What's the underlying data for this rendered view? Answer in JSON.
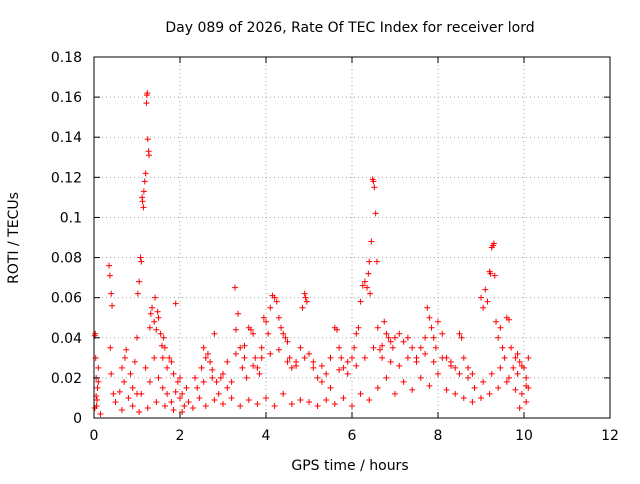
{
  "chart_data": {
    "type": "scatter",
    "title": "Day 089 of 2026, Rate Of TEC Index for receiver lord",
    "xlabel": "GPS time / hours",
    "ylabel": "ROTI / TECUs",
    "xlim": [
      0,
      12
    ],
    "ylim": [
      0,
      0.18
    ],
    "x_ticks": [
      0,
      2,
      4,
      6,
      8,
      10,
      12
    ],
    "y_ticks": [
      0,
      0.02,
      0.04,
      0.06,
      0.08,
      0.1,
      0.12,
      0.14,
      0.16,
      0.18
    ],
    "x_tick_labels": [
      "0",
      "2",
      "4",
      "6",
      "8",
      "10",
      "12"
    ],
    "y_tick_labels": [
      "0",
      "0.02",
      "0.04",
      "0.06",
      "0.08",
      "0.1",
      "0.12",
      "0.14",
      "0.16",
      "0.18"
    ],
    "grid": true,
    "marker": "+",
    "marker_color": "#ff0000",
    "series": [
      {
        "points": [
          [
            0.02,
            0.041
          ],
          [
            0.03,
            0.042
          ],
          [
            0.04,
            0.03
          ],
          [
            0.05,
            0.02
          ],
          [
            0.05,
            0.011
          ],
          [
            0.06,
            0.006
          ],
          [
            0.08,
            0.015
          ],
          [
            0.1,
            0.025
          ],
          [
            0.02,
            0.005
          ],
          [
            0.07,
            0.009
          ],
          [
            0.35,
            0.076
          ],
          [
            0.37,
            0.071
          ],
          [
            0.4,
            0.062
          ],
          [
            0.42,
            0.056
          ],
          [
            0.38,
            0.035
          ],
          [
            0.4,
            0.022
          ],
          [
            0.45,
            0.012
          ],
          [
            0.5,
            0.008
          ],
          [
            0.6,
            0.013
          ],
          [
            0.65,
            0.025
          ],
          [
            0.7,
            0.018
          ],
          [
            0.72,
            0.03
          ],
          [
            0.75,
            0.034
          ],
          [
            0.8,
            0.01
          ],
          [
            0.85,
            0.022
          ],
          [
            0.9,
            0.015
          ],
          [
            0.95,
            0.028
          ],
          [
            1.0,
            0.012
          ],
          [
            1.0,
            0.04
          ],
          [
            1.02,
            0.062
          ],
          [
            1.05,
            0.068
          ],
          [
            1.08,
            0.08
          ],
          [
            1.1,
            0.078
          ],
          [
            1.12,
            0.11
          ],
          [
            1.13,
            0.108
          ],
          [
            1.15,
            0.105
          ],
          [
            1.16,
            0.113
          ],
          [
            1.18,
            0.118
          ],
          [
            1.2,
            0.122
          ],
          [
            1.22,
            0.157
          ],
          [
            1.23,
            0.161
          ],
          [
            1.24,
            0.162
          ],
          [
            1.25,
            0.139
          ],
          [
            1.27,
            0.133
          ],
          [
            1.28,
            0.131
          ],
          [
            1.3,
            0.045
          ],
          [
            1.32,
            0.052
          ],
          [
            1.35,
            0.055
          ],
          [
            1.4,
            0.048
          ],
          [
            1.42,
            0.06
          ],
          [
            1.45,
            0.044
          ],
          [
            1.48,
            0.053
          ],
          [
            1.5,
            0.05
          ],
          [
            1.55,
            0.042
          ],
          [
            1.58,
            0.036
          ],
          [
            1.6,
            0.03
          ],
          [
            1.62,
            0.04
          ],
          [
            1.65,
            0.035
          ],
          [
            1.7,
            0.025
          ],
          [
            1.75,
            0.03
          ],
          [
            1.8,
            0.028
          ],
          [
            1.85,
            0.022
          ],
          [
            1.9,
            0.057
          ],
          [
            1.95,
            0.018
          ],
          [
            2.0,
            0.01
          ],
          [
            2.05,
            0.012
          ],
          [
            2.1,
            0.006
          ],
          [
            2.15,
            0.015
          ],
          [
            1.1,
            0.012
          ],
          [
            1.2,
            0.025
          ],
          [
            1.3,
            0.018
          ],
          [
            1.4,
            0.03
          ],
          [
            1.5,
            0.02
          ],
          [
            1.6,
            0.015
          ],
          [
            1.7,
            0.012
          ],
          [
            1.8,
            0.008
          ],
          [
            1.9,
            0.013
          ],
          [
            2.0,
            0.02
          ],
          [
            2.4,
            0.015
          ],
          [
            2.5,
            0.025
          ],
          [
            2.55,
            0.035
          ],
          [
            2.6,
            0.03
          ],
          [
            2.65,
            0.032
          ],
          [
            2.7,
            0.028
          ],
          [
            2.75,
            0.02
          ],
          [
            2.8,
            0.042
          ],
          [
            2.85,
            0.018
          ],
          [
            2.9,
            0.012
          ],
          [
            3.0,
            0.022
          ],
          [
            3.1,
            0.015
          ],
          [
            3.2,
            0.018
          ],
          [
            3.28,
            0.065
          ],
          [
            3.3,
            0.044
          ],
          [
            3.35,
            0.052
          ],
          [
            3.4,
            0.035
          ],
          [
            3.45,
            0.025
          ],
          [
            3.5,
            0.03
          ],
          [
            3.55,
            0.02
          ],
          [
            3.6,
            0.045
          ],
          [
            3.65,
            0.044
          ],
          [
            3.7,
            0.042
          ],
          [
            3.75,
            0.03
          ],
          [
            3.8,
            0.025
          ],
          [
            3.85,
            0.022
          ],
          [
            3.9,
            0.035
          ],
          [
            3.95,
            0.05
          ],
          [
            4.0,
            0.048
          ],
          [
            4.05,
            0.042
          ],
          [
            4.1,
            0.055
          ],
          [
            4.15,
            0.061
          ],
          [
            4.2,
            0.06
          ],
          [
            4.25,
            0.058
          ],
          [
            4.3,
            0.05
          ],
          [
            4.35,
            0.045
          ],
          [
            4.4,
            0.042
          ],
          [
            4.45,
            0.04
          ],
          [
            4.5,
            0.038
          ],
          [
            4.55,
            0.03
          ],
          [
            4.6,
            0.025
          ],
          [
            4.7,
            0.028
          ],
          [
            4.8,
            0.035
          ],
          [
            4.85,
            0.055
          ],
          [
            4.9,
            0.062
          ],
          [
            4.92,
            0.06
          ],
          [
            4.95,
            0.058
          ],
          [
            5.0,
            0.032
          ],
          [
            5.1,
            0.025
          ],
          [
            5.2,
            0.02
          ],
          [
            5.3,
            0.018
          ],
          [
            5.4,
            0.022
          ],
          [
            5.5,
            0.015
          ],
          [
            5.6,
            0.045
          ],
          [
            5.65,
            0.044
          ],
          [
            5.7,
            0.035
          ],
          [
            5.75,
            0.03
          ],
          [
            5.8,
            0.025
          ],
          [
            5.9,
            0.022
          ],
          [
            6.0,
            0.03
          ],
          [
            6.05,
            0.035
          ],
          [
            6.1,
            0.042
          ],
          [
            6.15,
            0.045
          ],
          [
            6.2,
            0.058
          ],
          [
            6.25,
            0.066
          ],
          [
            6.3,
            0.068
          ],
          [
            6.35,
            0.065
          ],
          [
            6.38,
            0.072
          ],
          [
            6.4,
            0.078
          ],
          [
            6.42,
            0.062
          ],
          [
            6.45,
            0.088
          ],
          [
            6.48,
            0.119
          ],
          [
            6.5,
            0.118
          ],
          [
            6.52,
            0.115
          ],
          [
            6.55,
            0.102
          ],
          [
            6.58,
            0.078
          ],
          [
            6.6,
            0.045
          ],
          [
            6.65,
            0.034
          ],
          [
            6.7,
            0.036
          ],
          [
            6.75,
            0.048
          ],
          [
            6.8,
            0.042
          ],
          [
            6.85,
            0.04
          ],
          [
            6.9,
            0.038
          ],
          [
            6.95,
            0.035
          ],
          [
            7.0,
            0.04
          ],
          [
            7.1,
            0.042
          ],
          [
            7.2,
            0.038
          ],
          [
            7.3,
            0.04
          ],
          [
            7.4,
            0.035
          ],
          [
            7.5,
            0.03
          ],
          [
            7.6,
            0.035
          ],
          [
            7.7,
            0.04
          ],
          [
            7.75,
            0.055
          ],
          [
            7.8,
            0.05
          ],
          [
            7.85,
            0.045
          ],
          [
            7.9,
            0.04
          ],
          [
            7.95,
            0.035
          ],
          [
            8.0,
            0.048
          ],
          [
            8.1,
            0.042
          ],
          [
            8.2,
            0.03
          ],
          [
            8.3,
            0.028
          ],
          [
            8.4,
            0.025
          ],
          [
            8.5,
            0.042
          ],
          [
            8.55,
            0.04
          ],
          [
            8.6,
            0.03
          ],
          [
            8.7,
            0.025
          ],
          [
            8.8,
            0.022
          ],
          [
            9.0,
            0.06
          ],
          [
            9.05,
            0.055
          ],
          [
            9.1,
            0.064
          ],
          [
            9.15,
            0.058
          ],
          [
            9.2,
            0.073
          ],
          [
            9.22,
            0.072
          ],
          [
            9.25,
            0.085
          ],
          [
            9.28,
            0.086
          ],
          [
            9.3,
            0.087
          ],
          [
            9.32,
            0.071
          ],
          [
            9.35,
            0.048
          ],
          [
            9.4,
            0.04
          ],
          [
            9.45,
            0.045
          ],
          [
            9.5,
            0.035
          ],
          [
            9.55,
            0.03
          ],
          [
            9.6,
            0.05
          ],
          [
            9.65,
            0.049
          ],
          [
            9.7,
            0.035
          ],
          [
            9.75,
            0.025
          ],
          [
            9.8,
            0.03
          ],
          [
            9.85,
            0.032
          ],
          [
            9.9,
            0.028
          ],
          [
            9.95,
            0.026
          ],
          [
            10.0,
            0.025
          ],
          [
            10.05,
            0.02
          ],
          [
            10.1,
            0.015
          ],
          [
            10.1,
            0.03
          ],
          [
            10.05,
            0.008
          ],
          [
            9.95,
            0.012
          ],
          [
            9.9,
            0.005
          ],
          [
            2.2,
            0.008
          ],
          [
            2.3,
            0.005
          ],
          [
            2.45,
            0.01
          ],
          [
            2.6,
            0.006
          ],
          [
            2.8,
            0.009
          ],
          [
            3.0,
            0.007
          ],
          [
            3.2,
            0.01
          ],
          [
            3.4,
            0.006
          ],
          [
            3.6,
            0.009
          ],
          [
            3.8,
            0.007
          ],
          [
            4.0,
            0.01
          ],
          [
            4.2,
            0.006
          ],
          [
            4.4,
            0.012
          ],
          [
            4.6,
            0.007
          ],
          [
            4.8,
            0.009
          ],
          [
            5.0,
            0.008
          ],
          [
            5.2,
            0.006
          ],
          [
            5.4,
            0.009
          ],
          [
            5.6,
            0.007
          ],
          [
            5.8,
            0.01
          ],
          [
            6.0,
            0.006
          ],
          [
            6.2,
            0.012
          ],
          [
            6.4,
            0.009
          ],
          [
            6.6,
            0.015
          ],
          [
            6.8,
            0.02
          ],
          [
            7.0,
            0.012
          ],
          [
            7.2,
            0.018
          ],
          [
            7.4,
            0.014
          ],
          [
            7.6,
            0.02
          ],
          [
            7.8,
            0.016
          ],
          [
            8.0,
            0.022
          ],
          [
            8.2,
            0.014
          ],
          [
            8.4,
            0.012
          ],
          [
            8.6,
            0.01
          ],
          [
            8.8,
            0.008
          ],
          [
            9.0,
            0.01
          ],
          [
            9.2,
            0.012
          ],
          [
            9.4,
            0.015
          ],
          [
            9.6,
            0.018
          ],
          [
            9.8,
            0.014
          ],
          [
            0.1,
            0.018
          ],
          [
            0.15,
            0.002
          ],
          [
            0.65,
            0.004
          ],
          [
            0.9,
            0.006
          ],
          [
            1.05,
            0.003
          ],
          [
            1.25,
            0.005
          ],
          [
            1.45,
            0.008
          ],
          [
            1.65,
            0.006
          ],
          [
            1.85,
            0.004
          ],
          [
            2.05,
            0.003
          ],
          [
            3.1,
            0.028
          ],
          [
            3.3,
            0.032
          ],
          [
            3.5,
            0.036
          ],
          [
            3.7,
            0.026
          ],
          [
            3.9,
            0.03
          ],
          [
            4.1,
            0.032
          ],
          [
            4.3,
            0.034
          ],
          [
            4.5,
            0.028
          ],
          [
            4.7,
            0.026
          ],
          [
            4.9,
            0.03
          ],
          [
            5.1,
            0.028
          ],
          [
            5.3,
            0.026
          ],
          [
            5.5,
            0.03
          ],
          [
            5.7,
            0.024
          ],
          [
            5.9,
            0.028
          ],
          [
            6.1,
            0.026
          ],
          [
            6.3,
            0.03
          ],
          [
            6.5,
            0.035
          ],
          [
            6.7,
            0.03
          ],
          [
            6.9,
            0.028
          ],
          [
            7.1,
            0.026
          ],
          [
            7.3,
            0.03
          ],
          [
            7.5,
            0.028
          ],
          [
            7.7,
            0.032
          ],
          [
            7.9,
            0.028
          ],
          [
            8.1,
            0.03
          ],
          [
            8.3,
            0.026
          ],
          [
            8.5,
            0.022
          ],
          [
            8.7,
            0.02
          ],
          [
            8.85,
            0.015
          ],
          [
            9.05,
            0.018
          ],
          [
            9.25,
            0.022
          ],
          [
            9.45,
            0.025
          ],
          [
            9.65,
            0.02
          ],
          [
            9.85,
            0.022
          ],
          [
            10.05,
            0.016
          ],
          [
            2.35,
            0.02
          ],
          [
            2.55,
            0.018
          ],
          [
            2.75,
            0.024
          ],
          [
            2.95,
            0.02
          ]
        ]
      }
    ]
  }
}
